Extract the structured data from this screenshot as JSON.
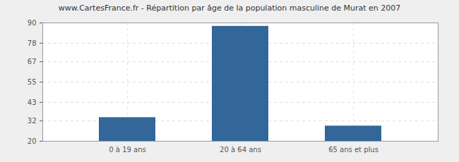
{
  "chart_data": {
    "type": "bar",
    "title": "www.CartesFrance.fr - Répartition par âge de la population masculine de Murat en 2007",
    "categories": [
      "0 à 19 ans",
      "20 à 64 ans",
      "65 ans et plus"
    ],
    "values": [
      34,
      88,
      29
    ],
    "color": "#336699",
    "ylim": [
      20,
      90
    ],
    "yticks": [
      20,
      32,
      43,
      55,
      67,
      78,
      90
    ],
    "grid": true
  }
}
